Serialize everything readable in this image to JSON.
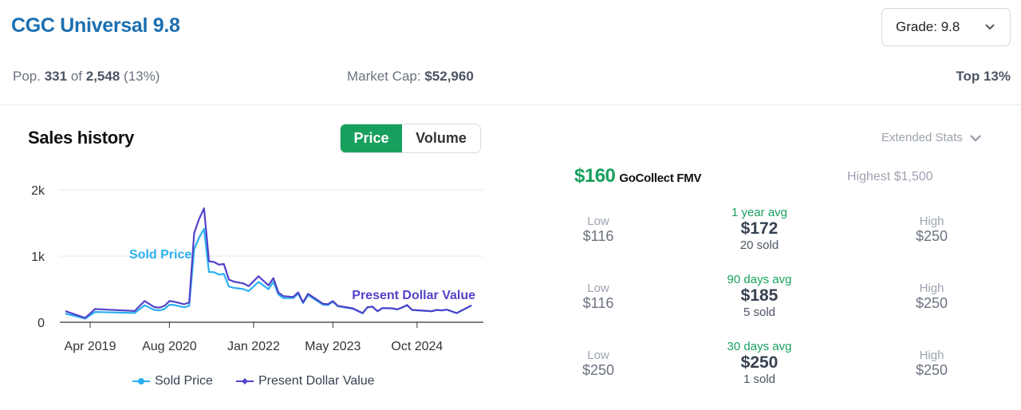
{
  "header": {
    "title": "CGC Universal 9.8",
    "grade_select": "Grade: 9.8"
  },
  "stats": {
    "pop_label": "Pop.",
    "pop_count": "331",
    "of": "of",
    "pop_total": "2,548",
    "pop_pct": "(13%)",
    "market_cap_label": "Market Cap:",
    "market_cap": "$52,960",
    "top": "Top 13%"
  },
  "sales": {
    "title": "Sales history",
    "tabs": [
      {
        "label": "Price",
        "active": true
      },
      {
        "label": "Volume",
        "active": false
      }
    ],
    "extended_stats": "Extended Stats"
  },
  "fmv": {
    "value": "$160",
    "label": "GoCollect FMV",
    "highest": "Highest $1,500"
  },
  "rows": [
    {
      "low_label": "Low",
      "low": "$116",
      "period": "1 year avg",
      "avg": "$172",
      "sold": "20 sold",
      "high_label": "High",
      "high": "$250"
    },
    {
      "low_label": "Low",
      "low": "$116",
      "period": "90 days avg",
      "avg": "$185",
      "sold": "5 sold",
      "high_label": "High",
      "high": "$250"
    },
    {
      "low_label": "Low",
      "low": "$250",
      "period": "30 days avg",
      "avg": "$250",
      "sold": "1 sold",
      "high_label": "High",
      "high": "$250"
    }
  ],
  "colors": {
    "sold": "#2bb0f2",
    "pdv": "#5143c9",
    "accent": "#17a05d",
    "title": "#1b6fb0"
  },
  "chart_data": {
    "type": "line",
    "ylim": [
      0,
      2000
    ],
    "yticks": [
      "0",
      "1k",
      "2k"
    ],
    "xticks": [
      {
        "label": "Apr 2019",
        "date": "2019-04"
      },
      {
        "label": "Aug 2020",
        "date": "2020-08"
      },
      {
        "label": "Jan 2022",
        "date": "2022-01"
      },
      {
        "label": "May 2023",
        "date": "2023-05"
      },
      {
        "label": "Oct 2024",
        "date": "2024-10"
      }
    ],
    "grid": true,
    "legend": "bottom",
    "x": [
      "2018-11",
      "2019-03",
      "2019-05",
      "2020-01",
      "2020-03",
      "2020-05",
      "2020-06",
      "2020-07",
      "2020-08",
      "2020-09",
      "2020-11",
      "2020-12",
      "2021-01",
      "2021-02",
      "2021-03",
      "2021-04",
      "2021-05",
      "2021-06",
      "2021-07",
      "2021-08",
      "2021-09",
      "2021-11",
      "2021-12",
      "2022-02",
      "2022-04",
      "2022-05",
      "2022-06",
      "2022-07",
      "2022-09",
      "2022-10",
      "2022-11",
      "2022-12",
      "2023-03",
      "2023-04",
      "2023-05",
      "2023-06",
      "2023-09",
      "2023-11",
      "2023-12",
      "2024-01",
      "2024-02",
      "2024-03",
      "2024-05",
      "2024-06",
      "2024-07",
      "2024-08",
      "2024-09",
      "2025-01",
      "2025-02",
      "2025-03",
      "2025-04",
      "2025-06",
      "2025-09"
    ],
    "series": [
      {
        "name": "Sold Price",
        "label": "Sold Price",
        "values": [
          130,
          55,
          155,
          140,
          255,
          185,
          180,
          200,
          265,
          260,
          225,
          250,
          1100,
          1280,
          1410,
          760,
          755,
          720,
          730,
          540,
          520,
          500,
          470,
          610,
          500,
          610,
          420,
          365,
          365,
          430,
          290,
          410,
          265,
          260,
          310,
          240,
          205,
          135,
          225,
          232,
          165,
          212,
          208,
          193,
          222,
          257,
          185,
          165,
          185,
          178,
          189,
          137,
          253
        ]
      },
      {
        "name": "Present Dollar Value",
        "label": "Present Dollar Value",
        "values": [
          167,
          65,
          200,
          170,
          320,
          228,
          220,
          248,
          320,
          310,
          272,
          300,
          1345,
          1560,
          1720,
          920,
          910,
          870,
          880,
          645,
          615,
          585,
          545,
          695,
          557,
          667,
          450,
          395,
          382,
          450,
          300,
          430,
          280,
          272,
          320,
          248,
          211,
          138,
          228,
          236,
          167,
          215,
          211,
          195,
          224,
          260,
          187,
          167,
          187,
          180,
          191,
          138,
          256
        ]
      }
    ]
  }
}
